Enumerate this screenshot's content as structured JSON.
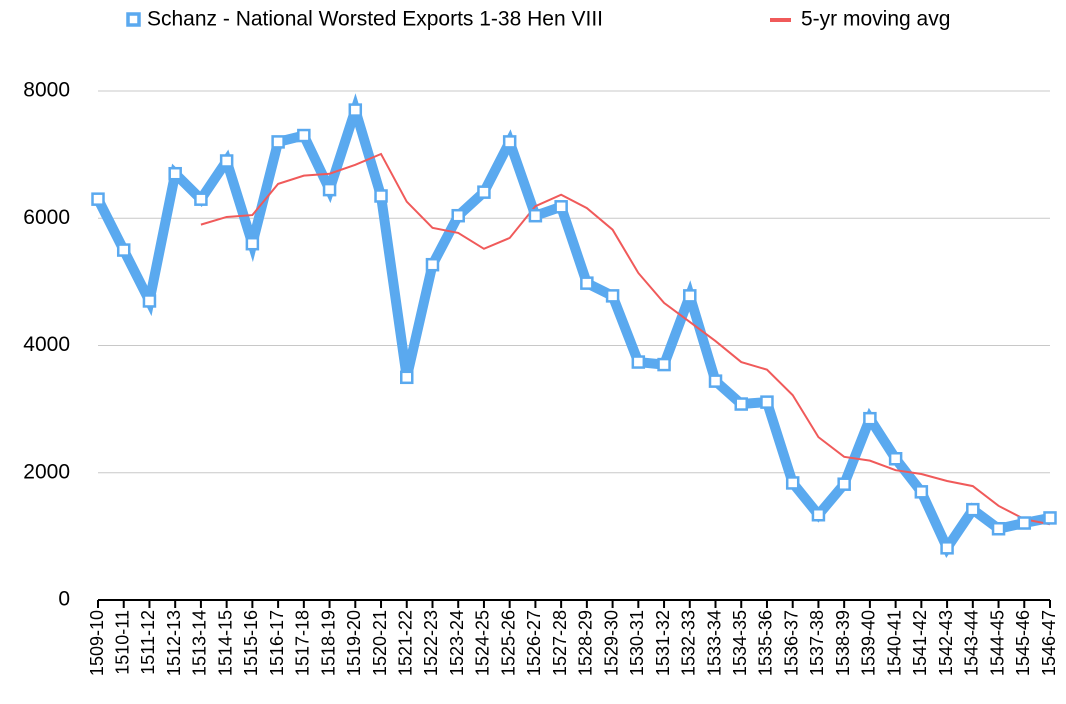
{
  "chart_data": {
    "type": "line",
    "categories": [
      "1509-10",
      "1510-11",
      "1511-12",
      "1512-13",
      "1513-14",
      "1514-15",
      "1515-16",
      "1516-17",
      "1517-18",
      "1518-19",
      "1519-20",
      "1520-21",
      "1521-22",
      "1522-23",
      "1523-24",
      "1524-25",
      "1525-26",
      "1526-27",
      "1527-28",
      "1528-29",
      "1529-30",
      "1530-31",
      "1531-32",
      "1532-33",
      "1533-34",
      "1534-35",
      "1535-36",
      "1536-37",
      "1537-38",
      "1538-39",
      "1539-40",
      "1540-41",
      "1541-42",
      "1542-43",
      "1543-44",
      "1544-45",
      "1545-46",
      "1546-47"
    ],
    "series": [
      {
        "name": "Schanz - National Worsted Exports 1-38 Hen VIII",
        "color": "#5aa9ef",
        "values": [
          6300,
          5500,
          4700,
          6700,
          6300,
          6900,
          5600,
          7200,
          7300,
          6450,
          7700,
          6350,
          3500,
          5270,
          6040,
          6410,
          7200,
          6040,
          6180,
          4980,
          4780,
          3740,
          3700,
          4780,
          3440,
          3080,
          3110,
          1840,
          1340,
          1820,
          2850,
          2220,
          1700,
          820,
          1420,
          1120,
          1210,
          1290
        ]
      },
      {
        "name": "5-yr moving avg",
        "color": "#f05a5a",
        "values": [
          null,
          null,
          null,
          null,
          5900,
          6020,
          6050,
          6540,
          6670,
          6700,
          6840,
          7010,
          6260,
          5850,
          5770,
          5520,
          5690,
          6190,
          6370,
          6160,
          5820,
          5140,
          4670,
          4370,
          4070,
          3740,
          3620,
          3220,
          2560,
          2250,
          2190,
          2040,
          1980,
          1870,
          1790,
          1480,
          1270,
          1190
        ]
      }
    ],
    "ylim": [
      0,
      8000
    ],
    "yticks": [
      0,
      2000,
      4000,
      6000,
      8000
    ],
    "grid": true
  }
}
